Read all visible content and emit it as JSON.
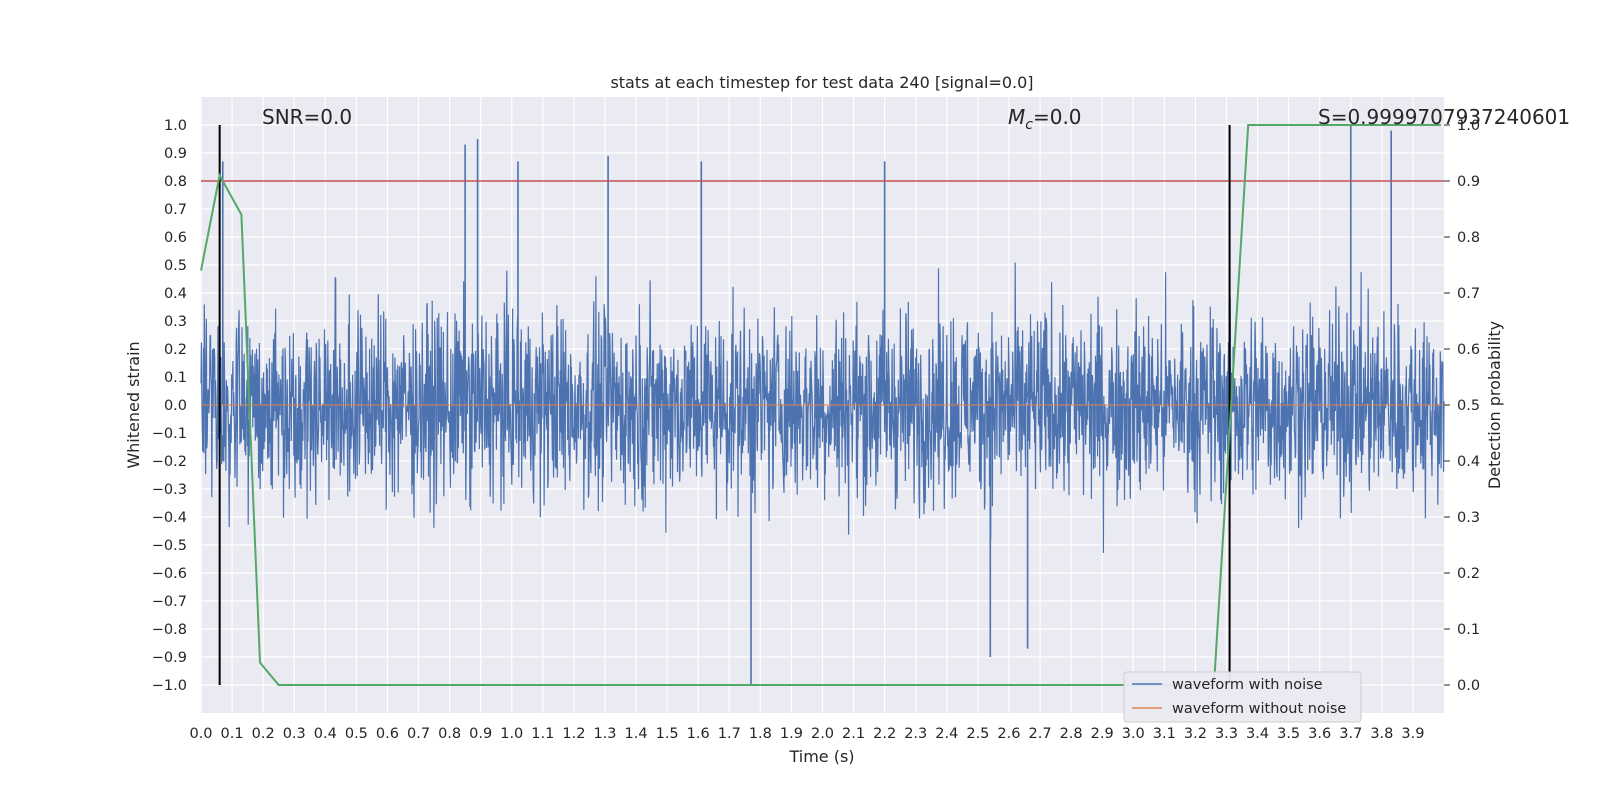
{
  "chart_data": {
    "type": "line",
    "title": "stats at each timestep for test data 240 [signal=0.0]",
    "xlabel": "Time (s)",
    "ylabel": "Whitened strain",
    "y2label": "Detection probability",
    "xlim": [
      0.0,
      4.0
    ],
    "ylim": [
      -1.1,
      1.1
    ],
    "y2lim": [
      -0.05,
      1.05
    ],
    "x_ticks": [
      "0.0",
      "0.1",
      "0.2",
      "0.3",
      "0.4",
      "0.5",
      "0.6",
      "0.7",
      "0.8",
      "0.9",
      "1.0",
      "1.1",
      "1.2",
      "1.3",
      "1.4",
      "1.5",
      "1.6",
      "1.7",
      "1.8",
      "1.9",
      "2.0",
      "2.1",
      "2.2",
      "2.3",
      "2.4",
      "2.5",
      "2.6",
      "2.7",
      "2.8",
      "2.9",
      "3.0",
      "3.1",
      "3.2",
      "3.3",
      "3.4",
      "3.5",
      "3.6",
      "3.7",
      "3.8",
      "3.9"
    ],
    "y_ticks": [
      "1.0",
      "0.9",
      "0.8",
      "0.7",
      "0.6",
      "0.5",
      "0.4",
      "0.3",
      "0.2",
      "0.1",
      "0.0",
      "−0.1",
      "−0.2",
      "−0.3",
      "−0.4",
      "−0.5",
      "−0.6",
      "−0.7",
      "−0.8",
      "−0.9",
      "−1.0"
    ],
    "y2_ticks": [
      "1.0",
      "0.9",
      "0.8",
      "0.7",
      "0.6",
      "0.5",
      "0.4",
      "0.3",
      "0.2",
      "0.1",
      "0.0"
    ],
    "grid": true,
    "legend_position": "lower-right",
    "annotations": {
      "snr": "SNR=0.0",
      "mc_symbol": "M",
      "mc_subscript": "c",
      "mc_value": "=0.0",
      "s": "S=0.9999707937240601"
    },
    "series": [
      {
        "name": "waveform with noise",
        "color": "#4c72b0",
        "axis": "left",
        "description_of_values": "noise-dominated strain, approx. uniform band",
        "typical_range": [
          -0.6,
          0.6
        ],
        "notable_peaks": [
          {
            "x": 0.07,
            "y": 0.87
          },
          {
            "x": 0.85,
            "y": 0.93
          },
          {
            "x": 0.89,
            "y": 0.95
          },
          {
            "x": 1.02,
            "y": 0.87
          },
          {
            "x": 1.31,
            "y": 0.89
          },
          {
            "x": 1.61,
            "y": 0.87
          },
          {
            "x": 2.2,
            "y": 0.87
          },
          {
            "x": 3.7,
            "y": 1.0
          },
          {
            "x": 3.83,
            "y": 0.98
          },
          {
            "x": 1.77,
            "y": -1.0
          },
          {
            "x": 2.54,
            "y": -0.9
          },
          {
            "x": 2.66,
            "y": -0.87
          }
        ]
      },
      {
        "name": "waveform without noise",
        "color": "#dd8452",
        "axis": "left",
        "values": "zero signal"
      },
      {
        "name": "detection probability",
        "color": "#55a868",
        "axis": "right",
        "x": [
          0.0,
          0.06,
          0.13,
          0.19,
          0.25,
          3.26,
          3.37,
          3.99
        ],
        "y": [
          0.74,
          0.91,
          0.84,
          0.04,
          0.0,
          0.0,
          1.0,
          1.0
        ]
      }
    ],
    "reference_lines": {
      "threshold": {
        "axis": "right",
        "value": 0.9,
        "color": "#c44e52"
      },
      "vertical_markers": {
        "x": [
          0.06,
          3.31
        ],
        "color": "#000000"
      }
    }
  }
}
